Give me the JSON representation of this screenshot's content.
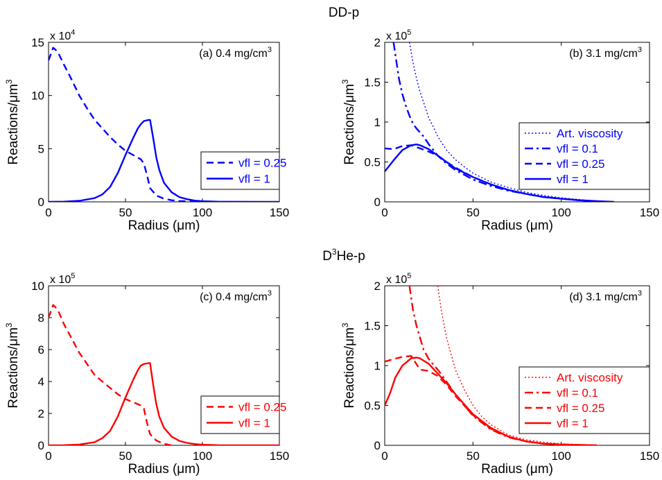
{
  "section_titles": {
    "top": "DD-p",
    "bottom_pre": "D",
    "bottom_sup": "3",
    "bottom_post": "He-p"
  },
  "chart_data": [
    {
      "type": "line",
      "panel": "(a)",
      "annotation": {
        "text": "(a) 0.4 mg/cm",
        "sup": "3"
      },
      "xlabel": "Radius (μm)",
      "ylabel": {
        "text": "Reactions/μm",
        "sup": "3"
      },
      "xlim": [
        0,
        150
      ],
      "ylim": [
        0,
        15
      ],
      "xticks": [
        0,
        50,
        100,
        150
      ],
      "yticks": [
        0,
        5,
        10,
        15
      ],
      "multiplier": {
        "text": "x 10",
        "sup": "4"
      },
      "color": "#0000ff",
      "legend_position": "lower-right",
      "series": [
        {
          "name": "vfl = 0.25",
          "style": "dashed",
          "x": [
            0,
            3,
            6,
            10,
            15,
            20,
            25,
            30,
            35,
            40,
            45,
            50,
            55,
            60,
            62,
            64,
            66,
            70,
            75,
            80,
            85,
            90,
            95,
            100
          ],
          "y": [
            13.3,
            14.5,
            14.1,
            12.9,
            11.5,
            10.0,
            8.8,
            7.7,
            6.9,
            6.1,
            5.4,
            4.8,
            4.4,
            4.0,
            3.6,
            2.5,
            1.3,
            0.6,
            0.3,
            0.15,
            0.08,
            0.05,
            0.02,
            0.0
          ]
        },
        {
          "name": "vfl = 1",
          "style": "solid",
          "x": [
            0,
            10,
            20,
            30,
            35,
            40,
            45,
            50,
            55,
            58,
            60,
            62,
            65,
            66,
            68,
            70,
            72,
            75,
            80,
            85,
            90,
            95,
            100,
            110,
            120,
            150
          ],
          "y": [
            0,
            0.02,
            0.1,
            0.35,
            0.7,
            1.4,
            2.7,
            4.4,
            6.0,
            6.9,
            7.3,
            7.6,
            7.7,
            7.7,
            6.0,
            4.2,
            3.0,
            1.8,
            0.9,
            0.45,
            0.25,
            0.12,
            0.06,
            0.02,
            0.01,
            0
          ]
        }
      ]
    },
    {
      "type": "line",
      "panel": "(b)",
      "annotation": {
        "text": "(b) 3.1 mg/cm",
        "sup": "3"
      },
      "xlabel": "Radius (μm)",
      "ylabel": {
        "text": "Reactions/μm",
        "sup": "3"
      },
      "xlim": [
        0,
        150
      ],
      "ylim": [
        0,
        2
      ],
      "xticks": [
        0,
        50,
        100,
        150
      ],
      "yticks": [
        0,
        0.5,
        1,
        1.5,
        2
      ],
      "multiplier": {
        "text": "x 10",
        "sup": "5"
      },
      "color": "#0000ff",
      "legend_position": "right",
      "series": [
        {
          "name": "Art. viscosity",
          "style": "dotted",
          "x": [
            14,
            16,
            18,
            20,
            22,
            25,
            28,
            30,
            35,
            40,
            45,
            50,
            60,
            70,
            80,
            90,
            100,
            110,
            120
          ],
          "y": [
            2.0,
            1.75,
            1.55,
            1.38,
            1.25,
            1.05,
            0.92,
            0.82,
            0.65,
            0.53,
            0.44,
            0.36,
            0.25,
            0.18,
            0.12,
            0.08,
            0.05,
            0.03,
            0.01
          ]
        },
        {
          "name": "vfl = 0.1",
          "style": "dashdot",
          "x": [
            5,
            6,
            8,
            10,
            12,
            14,
            16,
            18,
            20,
            22,
            25,
            30,
            35,
            40,
            50,
            60,
            70,
            80,
            90,
            100,
            110,
            120
          ],
          "y": [
            2.0,
            1.85,
            1.55,
            1.35,
            1.2,
            1.08,
            0.98,
            0.92,
            0.87,
            0.82,
            0.72,
            0.58,
            0.48,
            0.4,
            0.28,
            0.2,
            0.14,
            0.1,
            0.06,
            0.04,
            0.02,
            0.01
          ]
        },
        {
          "name": "vfl = 0.25",
          "style": "dashed",
          "x": [
            0,
            5,
            10,
            15,
            20,
            25,
            30,
            35,
            40,
            50,
            60,
            70,
            80,
            90,
            100,
            110,
            120
          ],
          "y": [
            0.67,
            0.66,
            0.7,
            0.71,
            0.67,
            0.63,
            0.58,
            0.5,
            0.43,
            0.31,
            0.22,
            0.15,
            0.1,
            0.06,
            0.04,
            0.02,
            0.01
          ]
        },
        {
          "name": "vfl = 1",
          "style": "solid",
          "x": [
            0,
            5,
            10,
            15,
            18,
            20,
            25,
            30,
            35,
            40,
            50,
            60,
            70,
            80,
            90,
            100,
            110,
            120,
            130
          ],
          "y": [
            0.38,
            0.52,
            0.65,
            0.71,
            0.72,
            0.71,
            0.66,
            0.58,
            0.5,
            0.42,
            0.31,
            0.22,
            0.15,
            0.1,
            0.06,
            0.04,
            0.02,
            0.01,
            0
          ]
        }
      ]
    },
    {
      "type": "line",
      "panel": "(c)",
      "annotation": {
        "text": "(c) 0.4 mg/cm",
        "sup": "3"
      },
      "xlabel": "Radius (μm)",
      "ylabel": {
        "text": "Reactions/μm",
        "sup": "3"
      },
      "xlim": [
        0,
        150
      ],
      "ylim": [
        0,
        10
      ],
      "xticks": [
        0,
        50,
        100,
        150
      ],
      "yticks": [
        0,
        2,
        4,
        6,
        8,
        10
      ],
      "multiplier": {
        "text": "x 10",
        "sup": "5"
      },
      "color": "#ff0000",
      "legend_position": "lower-right",
      "series": [
        {
          "name": "vfl = 0.25",
          "style": "dashed",
          "x": [
            0,
            3,
            6,
            10,
            15,
            20,
            25,
            30,
            35,
            40,
            45,
            50,
            55,
            60,
            62,
            64,
            66,
            70,
            75,
            80
          ],
          "y": [
            8.0,
            8.8,
            8.5,
            7.6,
            6.7,
            5.8,
            5.1,
            4.4,
            4.0,
            3.6,
            3.2,
            2.9,
            2.7,
            2.5,
            2.3,
            1.4,
            0.7,
            0.3,
            0.1,
            0
          ]
        },
        {
          "name": "vfl = 1",
          "style": "solid",
          "x": [
            0,
            10,
            20,
            30,
            35,
            40,
            45,
            50,
            55,
            58,
            60,
            62,
            65,
            66,
            68,
            70,
            72,
            75,
            80,
            85,
            90,
            95,
            100,
            110,
            120,
            150
          ],
          "y": [
            0,
            0.01,
            0.05,
            0.2,
            0.45,
            0.9,
            1.8,
            3.0,
            4.1,
            4.7,
            5.0,
            5.1,
            5.15,
            5.15,
            3.8,
            2.6,
            1.8,
            1.1,
            0.55,
            0.28,
            0.15,
            0.08,
            0.04,
            0.01,
            0,
            0
          ]
        }
      ]
    },
    {
      "type": "line",
      "panel": "(d)",
      "annotation": {
        "text": "(d) 3.1 mg/cm",
        "sup": "3"
      },
      "xlabel": "Radius (μm)",
      "ylabel": {
        "text": "Reactions/μm",
        "sup": "3"
      },
      "xlim": [
        0,
        150
      ],
      "ylim": [
        0,
        2
      ],
      "xticks": [
        0,
        50,
        100,
        150
      ],
      "yticks": [
        0,
        0.5,
        1,
        1.5,
        2
      ],
      "multiplier": {
        "text": "x 10",
        "sup": "5"
      },
      "color": "#ff0000",
      "legend_position": "lower-right",
      "series": [
        {
          "name": "Art. viscosity",
          "style": "dotted",
          "x": [
            30,
            32,
            35,
            40,
            45,
            50,
            55,
            60,
            70,
            80,
            90,
            100,
            110,
            120
          ],
          "y": [
            2.0,
            1.7,
            1.35,
            0.95,
            0.7,
            0.5,
            0.36,
            0.26,
            0.13,
            0.07,
            0.04,
            0.02,
            0.01,
            0
          ]
        },
        {
          "name": "vfl = 0.1",
          "style": "dashdot",
          "x": [
            14,
            16,
            18,
            20,
            22,
            25,
            28,
            30,
            35,
            40,
            50,
            60,
            70,
            80,
            90,
            100,
            120
          ],
          "y": [
            2.0,
            1.7,
            1.5,
            1.35,
            1.2,
            1.08,
            1.0,
            0.95,
            0.8,
            0.64,
            0.37,
            0.2,
            0.1,
            0.05,
            0.02,
            0.01,
            0
          ]
        },
        {
          "name": "vfl = 0.25",
          "style": "dashed",
          "x": [
            0,
            5,
            10,
            15,
            20,
            25,
            30,
            35,
            40,
            50,
            60,
            70,
            80,
            90,
            100,
            120
          ],
          "y": [
            1.05,
            1.08,
            1.11,
            1.12,
            0.95,
            0.93,
            0.87,
            0.76,
            0.62,
            0.38,
            0.21,
            0.11,
            0.05,
            0.02,
            0.01,
            0
          ]
        },
        {
          "name": "vfl = 1",
          "style": "solid",
          "x": [
            0,
            3,
            6,
            10,
            15,
            18,
            20,
            25,
            30,
            35,
            40,
            50,
            60,
            70,
            80,
            90,
            100,
            120
          ],
          "y": [
            0.5,
            0.65,
            0.85,
            1.0,
            1.09,
            1.1,
            1.09,
            1.02,
            0.9,
            0.78,
            0.64,
            0.39,
            0.22,
            0.11,
            0.05,
            0.02,
            0.01,
            0
          ]
        }
      ]
    }
  ]
}
